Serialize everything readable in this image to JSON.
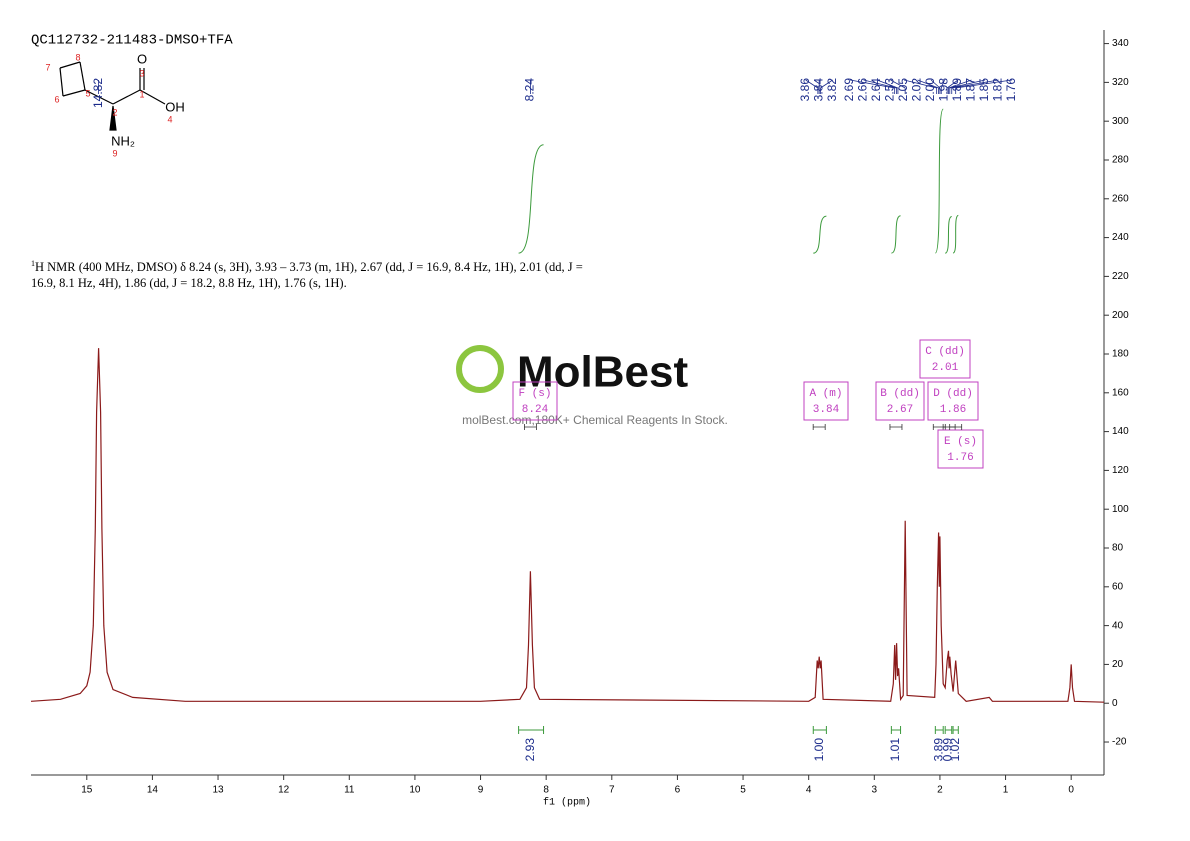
{
  "chart_data": {
    "type": "line",
    "title": "QC112732-211483-DMSO+TFA",
    "x_label": "f1 (ppm)",
    "xlim": [
      15.85,
      -0.5
    ],
    "xticks": [
      15,
      14,
      13,
      12,
      11,
      10,
      9,
      8,
      7,
      6,
      5,
      4,
      3,
      2,
      1,
      0
    ],
    "ylim": [
      -37,
      347
    ],
    "yticks": [
      -20,
      0,
      20,
      40,
      60,
      80,
      100,
      120,
      140,
      160,
      180,
      200,
      220,
      240,
      260,
      280,
      300,
      320,
      340
    ],
    "series": [
      {
        "color": "#8b1a1a",
        "x": [
          15.85,
          15.4,
          15.1,
          15.0,
          14.95,
          14.9,
          14.87,
          14.85,
          14.82,
          14.79,
          14.77,
          14.74,
          14.69,
          14.6,
          14.3,
          13.5,
          9,
          8.4,
          8.3,
          8.27,
          8.24,
          8.21,
          8.18,
          8.1,
          4.0,
          3.9,
          3.87,
          3.855,
          3.84,
          3.825,
          3.81,
          3.78,
          2.75,
          2.71,
          2.69,
          2.675,
          2.66,
          2.645,
          2.63,
          2.6,
          2.56,
          2.53,
          2.5,
          2.08,
          2.06,
          2.04,
          2.02,
          2.01,
          2.0,
          1.98,
          1.95,
          1.92,
          1.89,
          1.87,
          1.86,
          1.85,
          1.83,
          1.8,
          1.76,
          1.72,
          1.6,
          1.25,
          1.2,
          0.9,
          0.05,
          0.02,
          0.0,
          -0.02,
          -0.05,
          -0.5
        ],
        "values": [
          1,
          2,
          5,
          9,
          16,
          40,
          90,
          150,
          183,
          150,
          90,
          40,
          16,
          7,
          3,
          1,
          1,
          2,
          8,
          30,
          68,
          30,
          8,
          2,
          1,
          3,
          22,
          18,
          24,
          18,
          22,
          2,
          1,
          10,
          30,
          12,
          31,
          14,
          18,
          2,
          4,
          94,
          4,
          3,
          20,
          60,
          88,
          60,
          86,
          40,
          10,
          8,
          22,
          27,
          18,
          24,
          15,
          6,
          22,
          5,
          1,
          3,
          1,
          1,
          1,
          8,
          20,
          8,
          1,
          0.5
        ]
      }
    ],
    "peak_labels": [
      14.82,
      8.24,
      3.86,
      3.84,
      3.82,
      2.69,
      2.66,
      2.64,
      2.53,
      2.05,
      2.02,
      {
        "value": 2.0,
        "label": "2.00"
      },
      1.98,
      1.89,
      1.87,
      1.85,
      1.82,
      1.76
    ],
    "peak_label_color": "#1a2a8a",
    "integrals": {
      "color": "#3c9a3c",
      "ranges": [
        [
          8.42,
          8.04
        ],
        [
          3.93,
          3.73
        ],
        [
          2.74,
          2.6
        ],
        [
          2.07,
          1.95
        ],
        [
          1.92,
          1.82
        ],
        [
          1.8,
          1.72
        ]
      ],
      "values": [
        2.93,
        1.0,
        1.01,
        3.89,
        0.99,
        1.02
      ],
      "value_labels": [
        "2.93",
        "1.00",
        "1.01",
        "3.89",
        "0.99",
        "1.02"
      ]
    },
    "multiplets": {
      "color": "#c040c0",
      "items": [
        {
          "label": "F (s)",
          "shift": 8.24
        },
        {
          "label": "A (m)",
          "shift": 3.84
        },
        {
          "label": "B (dd)",
          "shift": 2.67
        },
        {
          "label": "C (dd)",
          "shift": 2.01
        },
        {
          "label": "D (dd)",
          "shift": 1.86
        },
        {
          "label": "E (s)",
          "shift": 1.76
        }
      ]
    },
    "description_sup": "1",
    "description": "H NMR (400 MHz, DMSO) δ 8.24 (s, 3H), 3.93 – 3.73 (m, 1H), 2.67 (dd, J = 16.9, 8.4 Hz, 1H), 2.01 (dd, J = 16.9, 8.1 Hz, 4H), 1.86 (dd, J = 18.2, 8.8 Hz, 1H), 1.76 (s, 1H).",
    "structure_labels": [
      "8",
      "7",
      "6",
      "5",
      "2",
      "1",
      "3",
      "O",
      "OH",
      "4",
      "NH₂",
      "9"
    ],
    "watermark": "MolBest",
    "watermark_sub": "molBest.com,180K+ Chemical Reagents In Stock."
  }
}
